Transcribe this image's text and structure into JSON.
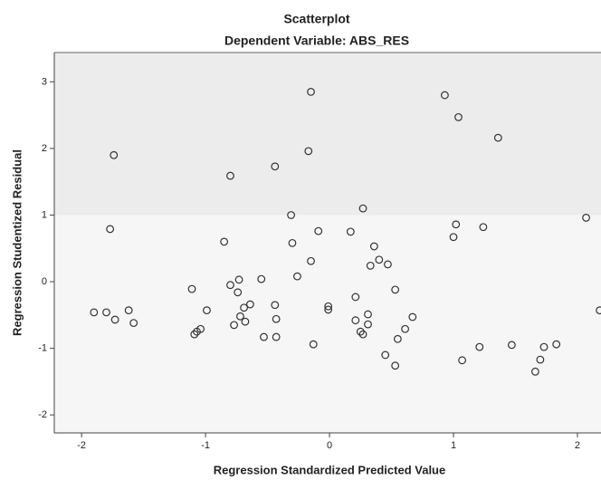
{
  "chart_data": {
    "type": "scatter",
    "title": "Scatterplot",
    "subtitle": "Dependent Variable: ABS_RES",
    "x_label": "Regression Standardized Predicted Value",
    "y_label": "Regression Studentized Residual",
    "color": "#333333",
    "xlim": [
      -2.22,
      2.19
    ],
    "ylim": [
      -2.27,
      3.44
    ],
    "xticks": [
      -2,
      -1,
      0,
      1,
      2
    ],
    "yticks": [
      -2,
      -1,
      0,
      1,
      2,
      3
    ],
    "x": [
      -1.74,
      -0.8,
      -0.44,
      -0.15,
      -0.17,
      0.93,
      1.04,
      1.36,
      -0.31,
      0.27,
      -1.77,
      -0.85,
      -0.3,
      -0.09,
      0.17,
      0.36,
      0.4,
      0.33,
      0.47,
      -0.15,
      -0.26,
      -0.55,
      -0.73,
      -0.8,
      -0.74,
      -1.11,
      -0.69,
      -0.64,
      -0.44,
      -0.01,
      -0.01,
      0.21,
      0.53,
      1.02,
      1.0,
      1.24,
      2.07,
      2.18,
      -1.9,
      -1.8,
      -1.73,
      -1.62,
      -1.58,
      -0.99,
      -1.04,
      -1.07,
      -1.09,
      -0.77,
      -0.72,
      -0.68,
      -0.43,
      -0.53,
      -0.43,
      -0.13,
      0.21,
      0.31,
      0.31,
      0.25,
      0.27,
      0.61,
      0.55,
      0.67,
      0.45,
      0.53,
      1.07,
      1.21,
      1.47,
      1.73,
      1.83,
      1.7,
      1.66
    ],
    "y": [
      1.9,
      1.59,
      1.73,
      2.85,
      1.96,
      2.8,
      2.47,
      2.16,
      1.0,
      1.1,
      0.79,
      0.6,
      0.58,
      0.76,
      0.75,
      0.53,
      0.33,
      0.24,
      0.26,
      0.31,
      0.08,
      0.04,
      0.03,
      -0.05,
      -0.16,
      -0.11,
      -0.39,
      -0.34,
      -0.35,
      -0.37,
      -0.42,
      -0.23,
      -0.12,
      0.86,
      0.67,
      0.82,
      0.96,
      -0.43,
      -0.46,
      -0.46,
      -0.57,
      -0.43,
      -0.62,
      -0.43,
      -0.71,
      -0.75,
      -0.79,
      -0.65,
      -0.52,
      -0.6,
      -0.56,
      -0.83,
      -0.83,
      -0.94,
      -0.58,
      -0.49,
      -0.64,
      -0.75,
      -0.79,
      -0.71,
      -0.86,
      -0.53,
      -1.1,
      -1.26,
      -1.18,
      -0.98,
      -0.95,
      -0.98,
      -0.94,
      -1.17,
      -1.35
    ]
  }
}
